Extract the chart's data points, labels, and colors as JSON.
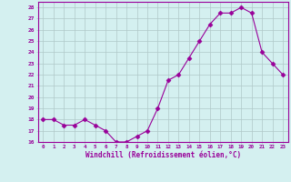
{
  "x": [
    0,
    1,
    2,
    3,
    4,
    5,
    6,
    7,
    8,
    9,
    10,
    11,
    12,
    13,
    14,
    15,
    16,
    17,
    18,
    19,
    20,
    21,
    22,
    23
  ],
  "y": [
    18,
    18,
    17.5,
    17.5,
    18,
    17.5,
    17,
    16,
    16,
    16.5,
    17,
    19,
    21.5,
    22,
    23.5,
    25,
    26.5,
    27.5,
    27.5,
    28,
    27.5,
    24,
    23,
    22
  ],
  "line_color": "#990099",
  "marker_color": "#990099",
  "bg_color": "#d4f0f0",
  "grid_color": "#b0c8c8",
  "xlabel": "Windchill (Refroidissement éolien,°C)",
  "xlabel_color": "#990099",
  "tick_color": "#990099",
  "ylim": [
    16,
    28.5
  ],
  "yticks": [
    16,
    17,
    18,
    19,
    20,
    21,
    22,
    23,
    24,
    25,
    26,
    27,
    28
  ],
  "xticks": [
    0,
    1,
    2,
    3,
    4,
    5,
    6,
    7,
    8,
    9,
    10,
    11,
    12,
    13,
    14,
    15,
    16,
    17,
    18,
    19,
    20,
    21,
    22,
    23
  ],
  "border_color": "#990099",
  "figsize": [
    3.2,
    2.0
  ],
  "dpi": 100
}
